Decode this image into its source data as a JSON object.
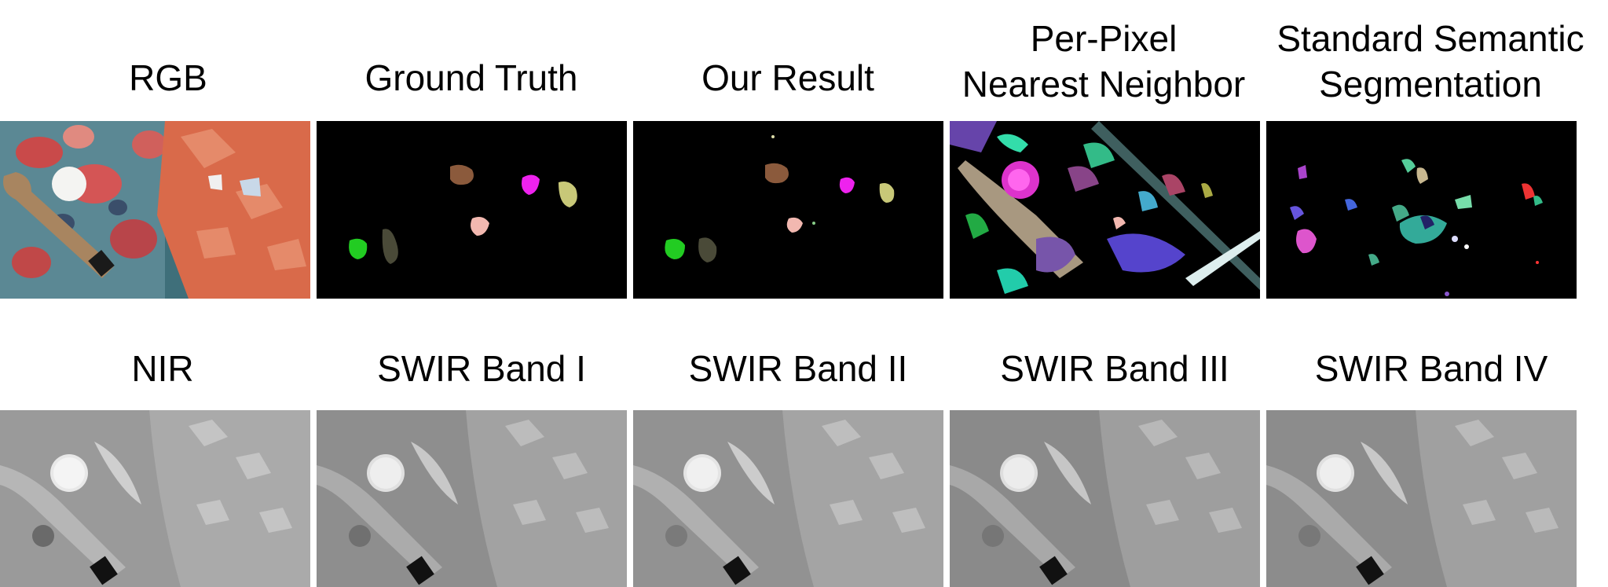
{
  "top_row": {
    "captions": [
      "RGB",
      "Ground Truth",
      "Our Result",
      "Per-Pixel\nNearest Neighbor",
      "Standard Semantic\nSegmentation"
    ]
  },
  "bottom_row": {
    "captions": [
      "NIR",
      "SWIR Band I",
      "SWIR Band II",
      "SWIR Band III",
      "SWIR Band IV"
    ]
  },
  "segment_colors": {
    "brown": "#8b5a3c",
    "magenta": "#ee22ee",
    "khaki": "#c8c878",
    "pink": "#f2b8b0",
    "green": "#22cc22",
    "olive": "#4a4a38"
  }
}
